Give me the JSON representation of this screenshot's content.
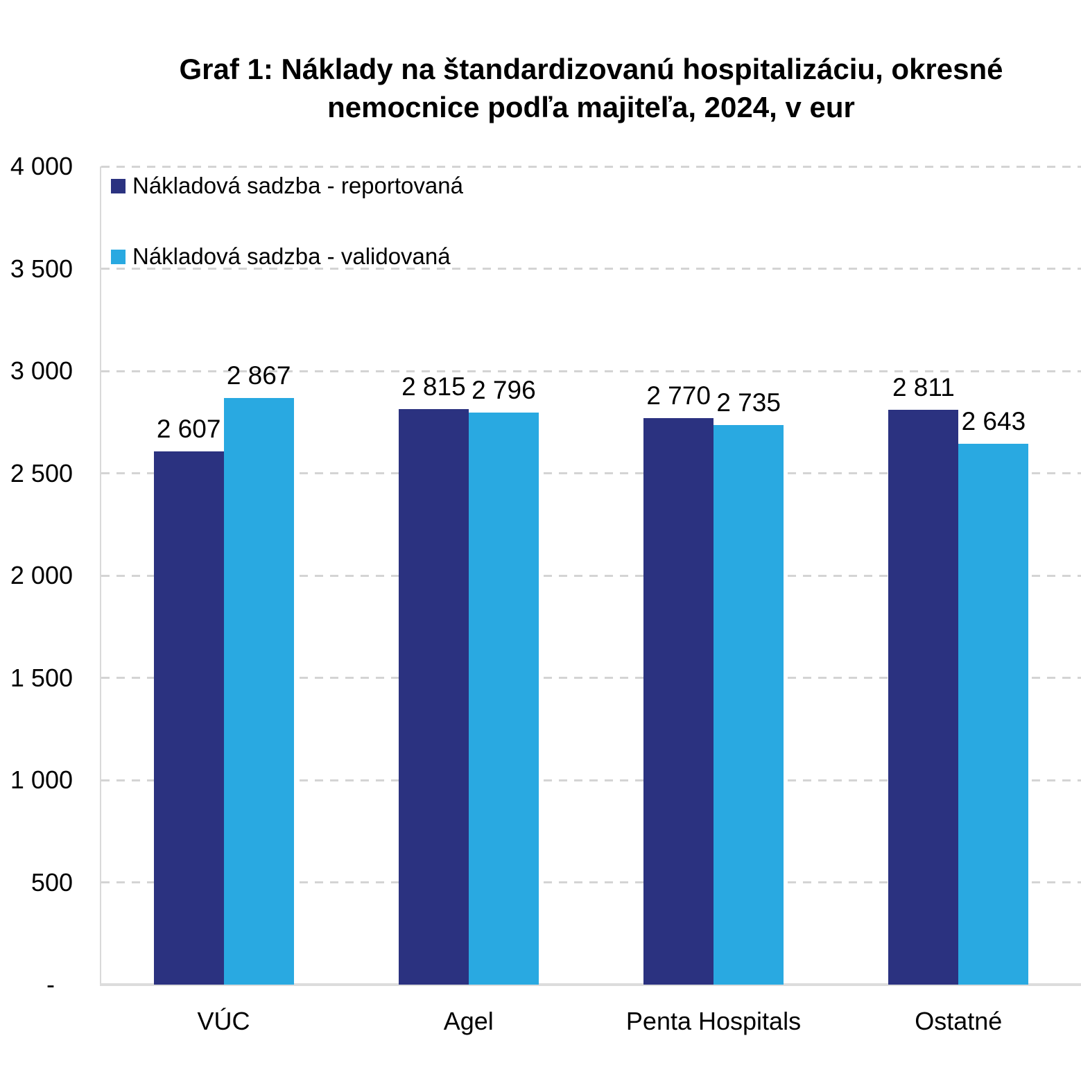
{
  "chart_data": {
    "type": "bar",
    "title": "Graf 1: Náklady na štandardizovanú hospitalizáciu, okresné\nnemocnice podľa majiteľa, 2024, v eur",
    "categories": [
      "VÚC",
      "Agel",
      "Penta Hospitals",
      "Ostatné"
    ],
    "category_slugs": [
      "vuc",
      "agel",
      "penta-hospitals",
      "ostatne"
    ],
    "series": [
      {
        "name": "Nákladová sadzba - reportovaná",
        "slug": "reportovana",
        "color": "#2B3280",
        "values": [
          2607,
          2815,
          2770,
          2811
        ],
        "value_labels": [
          "2 607",
          "2 815",
          "2 770",
          "2 811"
        ]
      },
      {
        "name": "Nákladová sadzba - validovaná",
        "slug": "validovana",
        "color": "#29A9E1",
        "values": [
          2867,
          2796,
          2735,
          2643
        ],
        "value_labels": [
          "2 867",
          "2 796",
          "2 735",
          "2 643"
        ]
      }
    ],
    "y_axis": {
      "min": 0,
      "max": 4000,
      "step": 500,
      "tick_labels": [
        "-",
        "500",
        "1 000",
        "1 500",
        "2 000",
        "2 500",
        "3 000",
        "3 500",
        "4 000"
      ]
    },
    "xlabel": "",
    "ylabel": "",
    "legend_position": "top-left",
    "grid": "horizontal-dashed",
    "grid_color": "#D4D4D4",
    "axis_color": "#D9D9D9",
    "value_label_color": "#000000"
  }
}
